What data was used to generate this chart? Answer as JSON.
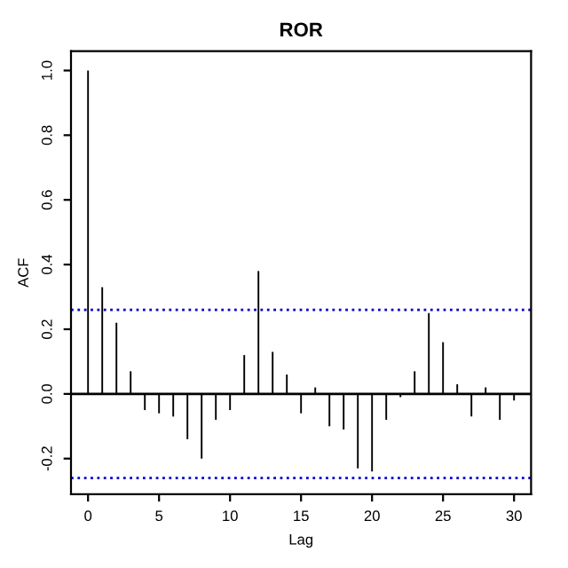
{
  "chart_data": {
    "type": "bar",
    "title": "ROR",
    "xlabel": "Lag",
    "ylabel": "ACF",
    "x": [
      0,
      1,
      2,
      3,
      4,
      5,
      6,
      7,
      8,
      9,
      10,
      11,
      12,
      13,
      14,
      15,
      16,
      17,
      18,
      19,
      20,
      21,
      22,
      23,
      24,
      25,
      26,
      27,
      28,
      29,
      30
    ],
    "values": [
      1.0,
      0.33,
      0.22,
      0.07,
      -0.05,
      -0.06,
      -0.07,
      -0.14,
      -0.2,
      -0.08,
      -0.05,
      0.12,
      0.38,
      0.13,
      0.06,
      -0.06,
      0.02,
      -0.1,
      -0.11,
      -0.23,
      -0.24,
      -0.08,
      -0.01,
      0.07,
      0.25,
      0.16,
      0.03,
      -0.07,
      0.02,
      -0.08,
      -0.02
    ],
    "color": "#000000",
    "xlim": [
      -1.2,
      31.2
    ],
    "xticks": [
      0,
      5,
      10,
      15,
      20,
      25,
      30
    ],
    "ylim": [
      -0.31,
      1.06
    ],
    "yticks": [
      {
        "value": -0.2,
        "label": "-0.2"
      },
      {
        "value": 0,
        "label": "0.0"
      },
      {
        "value": 0.2,
        "label": "0.2"
      },
      {
        "value": 0.4,
        "label": "0.4"
      },
      {
        "value": 0.6,
        "label": "0.6"
      },
      {
        "value": 0.8,
        "label": "0.8"
      },
      {
        "value": 1,
        "label": "1.0"
      }
    ],
    "ref_lines": [
      {
        "axis": "y",
        "value": 0,
        "label": null,
        "color": "#000000",
        "line_style": "solid"
      },
      {
        "axis": "y",
        "value": 0.26,
        "label": null,
        "color": "#0000cc",
        "line_style": "dotted"
      },
      {
        "axis": "y",
        "value": -0.26,
        "label": null,
        "color": "#0000cc",
        "line_style": "dotted"
      }
    ],
    "grid": false,
    "legend": false
  }
}
